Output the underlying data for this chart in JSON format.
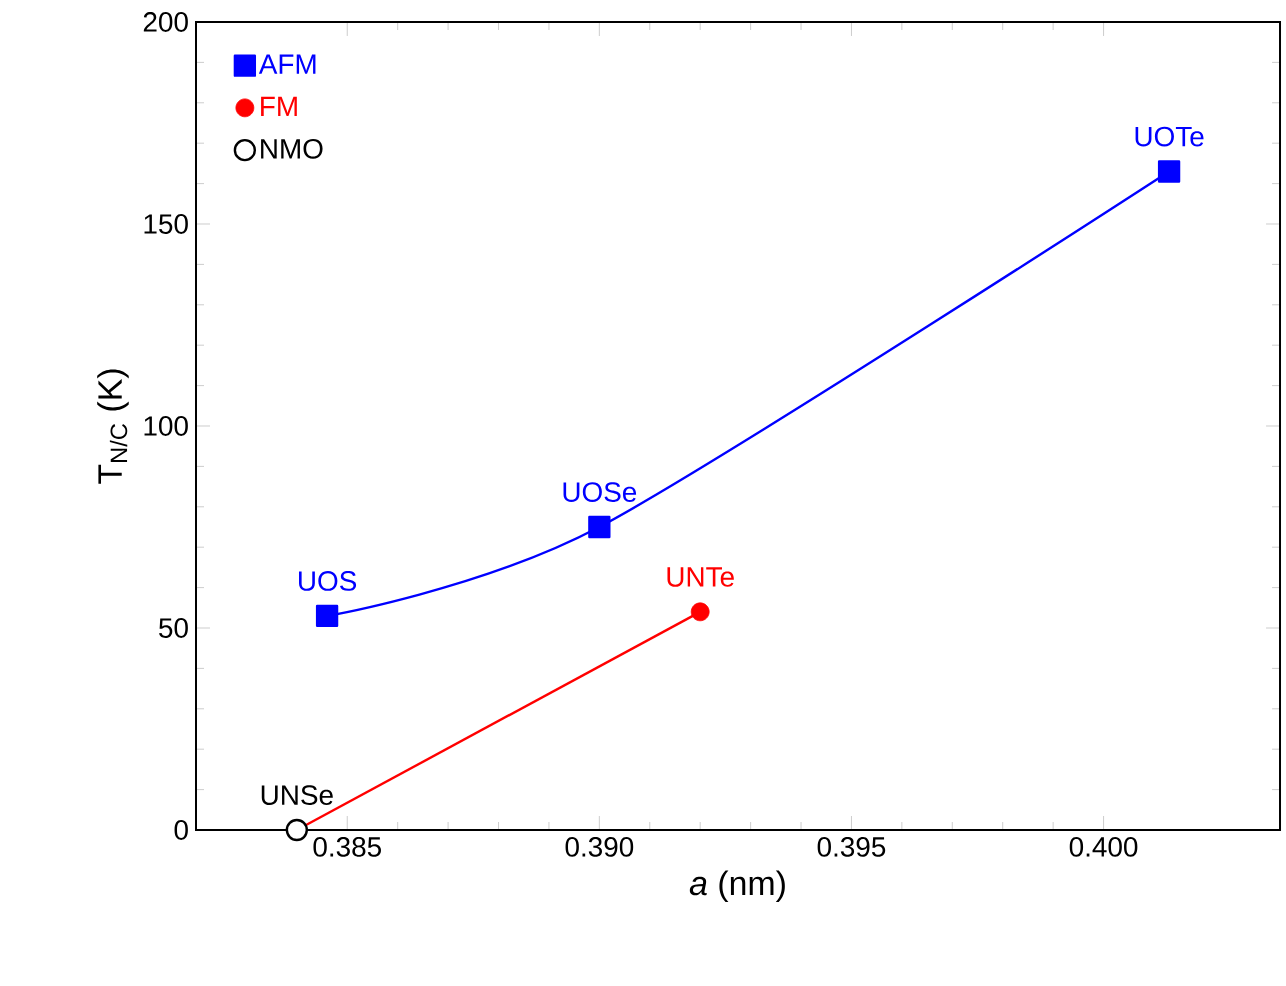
{
  "chart_data": {
    "type": "scatter",
    "xlabel": "*a* (nm)",
    "ylabel": "T$_{N/C}$ (K)",
    "xlim": [
      0.382,
      0.4035
    ],
    "ylim": [
      0,
      200
    ],
    "xticks": [
      0.385,
      {
        "value": 0.39,
        "label": "0.390"
      },
      0.395,
      {
        "value": 0.4,
        "label": "0.400"
      }
    ],
    "yticks": [
      0,
      50,
      100,
      150,
      200
    ],
    "legend": "top left",
    "grid": false,
    "series": [
      {
        "name": "AFM",
        "type": "line",
        "color": "#0000ff",
        "marker": "square",
        "x": [
          0.3846,
          0.39,
          0.4013
        ],
        "values": [
          53,
          75,
          163
        ]
      },
      {
        "type": "line",
        "color": "#ff0000",
        "marker": "none",
        "x": [
          0.384,
          0.392
        ],
        "values": [
          0,
          54
        ]
      },
      {
        "name": "FM",
        "color": "#ff0000",
        "marker": "circle",
        "x": [
          0.392
        ],
        "values": [
          54
        ]
      },
      {
        "name": "NMO",
        "color": "#000000",
        "marker": "open circle",
        "x": [
          0.384
        ],
        "values": [
          0
        ]
      }
    ],
    "annotations": [
      {
        "text": "UOS",
        "x": 0.3846,
        "y": 53
      },
      {
        "text": "UOSe",
        "x": 0.39,
        "y": 75
      },
      {
        "text": "UOTe",
        "x": 0.4013,
        "y": 163
      },
      {
        "text": "UNTe",
        "x": 0.392,
        "y": 54
      },
      {
        "text": "UNSe",
        "x": 0.384,
        "y": 0
      }
    ]
  }
}
